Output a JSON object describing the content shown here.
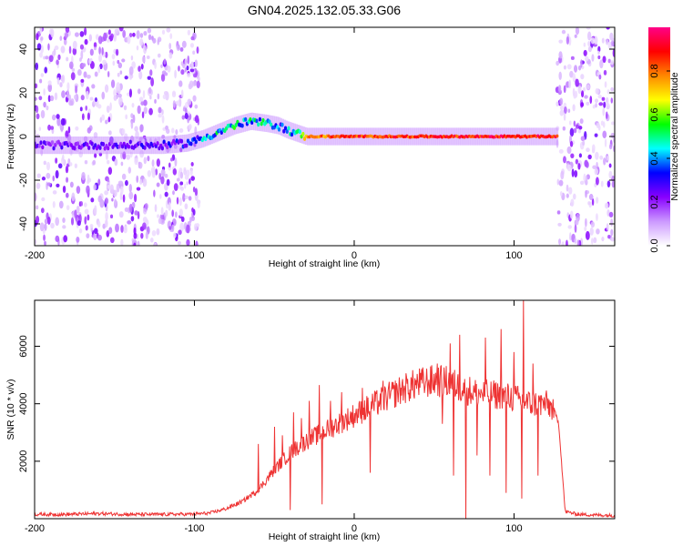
{
  "title": "GN04.2025.132.05.33.G06",
  "chart_data": [
    {
      "type": "heatmap",
      "name": "spectrogram",
      "xlabel": "Height of straight line (km)",
      "ylabel": "Frequency (Hz)",
      "xlim": [
        -200,
        163
      ],
      "ylim": [
        -50,
        50
      ],
      "xticks": [
        -200,
        -100,
        0,
        100
      ],
      "yticks": [
        -40,
        -20,
        0,
        20,
        40
      ],
      "colorbar": {
        "label": "Normalized spectral amplitude",
        "range": [
          0,
          1
        ],
        "ticks": [
          0.0,
          0.2,
          0.4,
          0.6,
          0.8
        ],
        "tick_labels": [
          "0.0",
          "0.2",
          "0.4",
          "0.6",
          "0.8"
        ],
        "colors": [
          "#ffffff",
          "#cc99ff",
          "#8800ff",
          "#0000ff",
          "#00ffff",
          "#00ff00",
          "#ffff00",
          "#ff8800",
          "#ff0000",
          "#ff0088"
        ]
      },
      "noise_regions": [
        [
          -200,
          -97
        ],
        [
          127,
          163
        ]
      ],
      "carrier_track": {
        "x": [
          -200,
          -150,
          -120,
          -105,
          -95,
          -85,
          -75,
          -65,
          -55,
          -48,
          -42,
          -38,
          -34,
          -30,
          0,
          50,
          100,
          127
        ],
        "frequency": [
          -4,
          -4,
          -4,
          -3,
          -1,
          2,
          5,
          7,
          6,
          5,
          3,
          2,
          1,
          0,
          0,
          0,
          0,
          0
        ],
        "amplitude": [
          0.25,
          0.28,
          0.3,
          0.35,
          0.45,
          0.5,
          0.55,
          0.55,
          0.5,
          0.45,
          0.45,
          0.5,
          0.6,
          0.8,
          0.9,
          0.9,
          0.95,
          0.95
        ]
      }
    },
    {
      "type": "line",
      "name": "snr",
      "xlabel": "Height of straight line (km)",
      "ylabel": "SNR (10 * v/v)",
      "xlim": [
        -200,
        163
      ],
      "ylim": [
        0,
        7600
      ],
      "xticks": [
        -200,
        -100,
        0,
        100
      ],
      "yticks": [
        2000,
        4000,
        6000
      ],
      "color": "#ee3333",
      "series": [
        {
          "name": "SNR",
          "x": [
            -200,
            -180,
            -160,
            -140,
            -120,
            -100,
            -90,
            -80,
            -70,
            -60,
            -50,
            -40,
            -30,
            -20,
            -10,
            0,
            10,
            20,
            30,
            40,
            50,
            60,
            65,
            70,
            75,
            80,
            90,
            100,
            110,
            120,
            125,
            128,
            132,
            140,
            150,
            163
          ],
          "values": [
            150,
            150,
            180,
            150,
            150,
            160,
            200,
            350,
            600,
            1000,
            1700,
            2300,
            2700,
            3000,
            3300,
            3600,
            3900,
            4200,
            4500,
            4700,
            4800,
            4750,
            4600,
            4500,
            4400,
            4350,
            4300,
            4200,
            4000,
            4000,
            3800,
            3300,
            250,
            150,
            130,
            110
          ]
        }
      ],
      "spikes": [
        {
          "x": -60,
          "value": 2600
        },
        {
          "x": -50,
          "value": 3200
        },
        {
          "x": -45,
          "value": 2900
        },
        {
          "x": -38,
          "value": 3700
        },
        {
          "x": -33,
          "value": 3500
        },
        {
          "x": -28,
          "value": 4100
        },
        {
          "x": -22,
          "value": 4650
        },
        {
          "x": -15,
          "value": 4100
        },
        {
          "x": -8,
          "value": 4400
        },
        {
          "x": 5,
          "value": 4550
        },
        {
          "x": 18,
          "value": 4800
        },
        {
          "x": 52,
          "value": 5400
        },
        {
          "x": 60,
          "value": 6100
        },
        {
          "x": 66,
          "value": 6400
        },
        {
          "x": 82,
          "value": 6300
        },
        {
          "x": 92,
          "value": 6600
        },
        {
          "x": 100,
          "value": 5800
        },
        {
          "x": 106,
          "value": 7600
        },
        {
          "x": 112,
          "value": 5400
        }
      ],
      "dips": [
        {
          "x": -40,
          "value": 300
        },
        {
          "x": -20,
          "value": 500
        },
        {
          "x": 10,
          "value": 1600
        },
        {
          "x": 55,
          "value": 3300
        },
        {
          "x": 62,
          "value": 1500
        },
        {
          "x": 70,
          "value": 0
        },
        {
          "x": 77,
          "value": 2200
        },
        {
          "x": 85,
          "value": 1500
        },
        {
          "x": 95,
          "value": 900
        },
        {
          "x": 105,
          "value": 700
        },
        {
          "x": 115,
          "value": 1500
        }
      ]
    }
  ]
}
